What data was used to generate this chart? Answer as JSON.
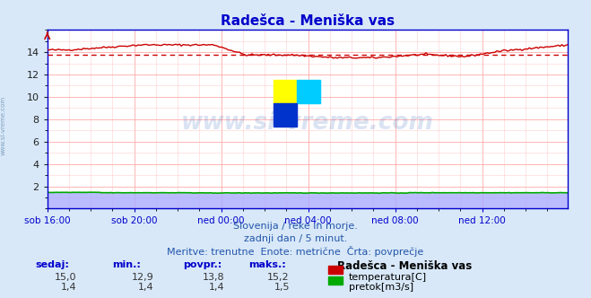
{
  "title": "Radešca - Meniška vas",
  "background_color": "#d8e8f8",
  "plot_bg_color": "#ffffff",
  "grid_color_major": "#ffaaaa",
  "grid_color_minor": "#ffd0d0",
  "title_color": "#0000cc",
  "xlabel_color": "#0000aa",
  "subtitle_color": "#2255aa",
  "subtitle_lines": [
    "Slovenija / reke in morje.",
    "zadnji dan / 5 minut.",
    "Meritve: trenutne  Enote: metrične  Črta: povprečje"
  ],
  "legend_title": "Radešca - Meniška vas",
  "legend_entries": [
    "temperatura[C]",
    "pretok[m3/s]"
  ],
  "legend_colors": [
    "#cc0000",
    "#00aa00"
  ],
  "table_headers": [
    "sedaj:",
    "min.:",
    "povpr.:",
    "maks.:"
  ],
  "table_row1": [
    "15,0",
    "12,9",
    "13,8",
    "15,2"
  ],
  "table_row2": [
    "1,4",
    "1,4",
    "1,4",
    "1,5"
  ],
  "xtick_labels": [
    "sob 16:00",
    "sob 20:00",
    "ned 00:00",
    "ned 04:00",
    "ned 08:00",
    "ned 12:00"
  ],
  "xtick_positions": [
    0,
    48,
    96,
    144,
    192,
    240
  ],
  "total_points": 288,
  "ylim": [
    0,
    16
  ],
  "ytick_vals": [
    2,
    4,
    6,
    8,
    10,
    12,
    14
  ],
  "avg_temp": 13.8,
  "avg_flow": 1.4,
  "temp_color": "#cc0000",
  "flow_color": "#00aa00",
  "flow_fill_color": "#aaaaff",
  "axis_color": "#0000cc",
  "side_label": "www.si-vreme.com",
  "side_label_color": "#7799bb",
  "watermark_text": "www.si-vreme.com",
  "watermark_color": "#3366bb",
  "watermark_alpha": 0.18,
  "logo_yellow": "#ffff00",
  "logo_cyan": "#00ccff",
  "logo_blue": "#0033cc"
}
